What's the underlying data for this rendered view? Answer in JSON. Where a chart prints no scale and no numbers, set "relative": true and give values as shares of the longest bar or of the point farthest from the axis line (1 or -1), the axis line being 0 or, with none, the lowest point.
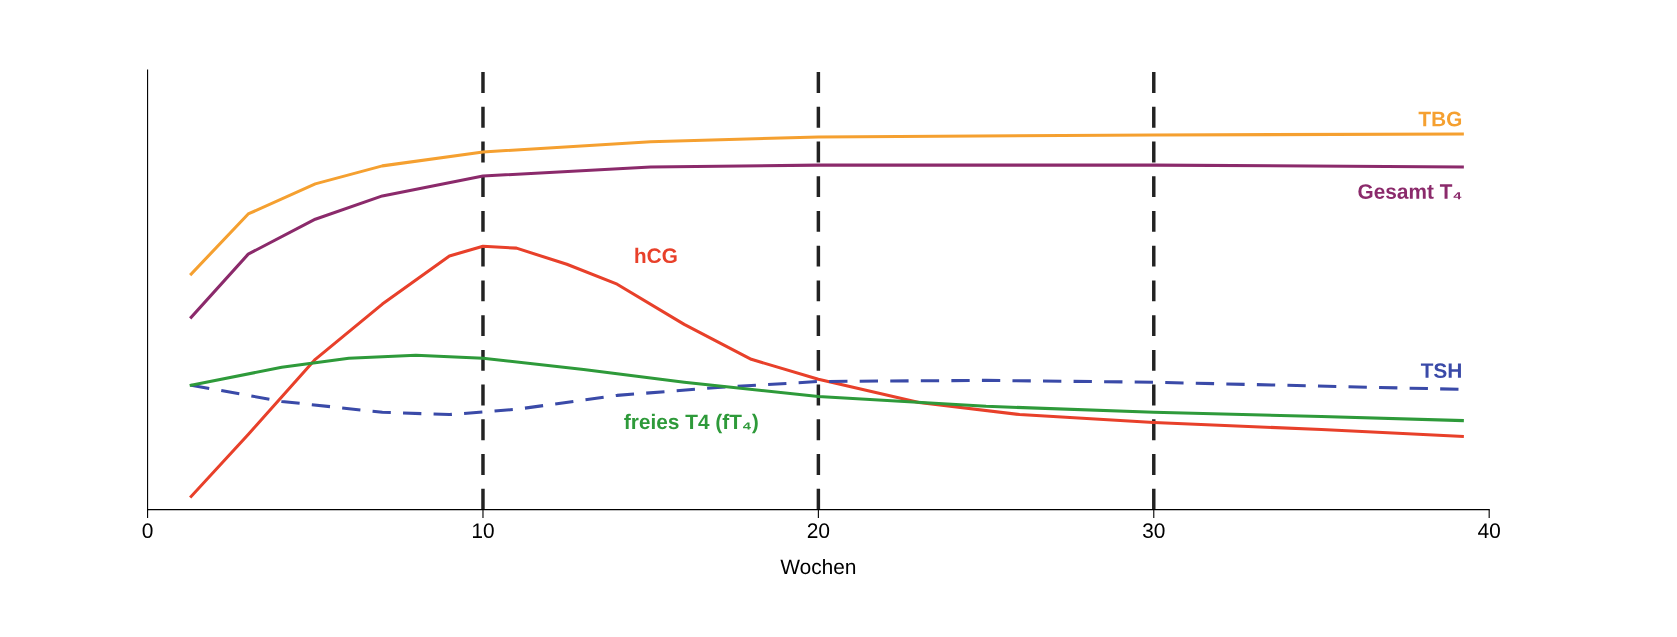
{
  "chart_data": {
    "type": "line",
    "relative": true,
    "xlabel": "Wochen",
    "xlim": [
      0,
      40
    ],
    "xticks": [
      0,
      10,
      20,
      30,
      40
    ],
    "grid": false,
    "legend": false,
    "marker": "none",
    "ref_lines": [
      {
        "axis": "x",
        "value": 10,
        "color": "#222222",
        "line_style": "dashed"
      },
      {
        "axis": "x",
        "value": 20,
        "color": "#222222",
        "line_style": "dashed"
      },
      {
        "axis": "x",
        "value": 30,
        "color": "#222222",
        "line_style": "dashed"
      }
    ],
    "series": [
      {
        "name": "TBG",
        "color": "#f5a030",
        "line_style": "solid",
        "x": [
          1.3,
          3,
          5,
          7,
          10,
          15,
          20,
          30,
          39.2
        ],
        "values": [
          0.627,
          0.787,
          0.867,
          0.915,
          0.952,
          0.979,
          0.992,
          0.997,
          1.0
        ]
      },
      {
        "name": "Gesamt T₄",
        "color": "#8b2a6b",
        "line_style": "solid",
        "x": [
          1.3,
          3,
          5,
          7,
          10,
          15,
          20,
          30,
          39.2
        ],
        "values": [
          0.512,
          0.68,
          0.773,
          0.835,
          0.888,
          0.912,
          0.917,
          0.917,
          0.912
        ]
      },
      {
        "name": "hCG",
        "color": "#e8402a",
        "line_style": "solid",
        "x": [
          1.3,
          3,
          5,
          7,
          9,
          10,
          11,
          12.5,
          14,
          16,
          18,
          20,
          23,
          26,
          30,
          35,
          39.2
        ],
        "values": [
          0.035,
          0.2,
          0.4,
          0.547,
          0.675,
          0.701,
          0.696,
          0.653,
          0.6,
          0.493,
          0.4,
          0.347,
          0.285,
          0.253,
          0.232,
          0.213,
          0.195
        ]
      },
      {
        "name": "TSH",
        "color": "#3a4aa8",
        "line_style": "dashed",
        "x": [
          1.3,
          4,
          7,
          9,
          11,
          14,
          17,
          20,
          25,
          30,
          39.2
        ],
        "values": [
          0.331,
          0.288,
          0.259,
          0.253,
          0.267,
          0.304,
          0.325,
          0.341,
          0.344,
          0.339,
          0.32
        ]
      },
      {
        "name": "freies T4 (fT₄)",
        "color": "#2e9a3a",
        "line_style": "solid",
        "x": [
          1.3,
          4,
          6,
          8,
          10,
          13,
          16,
          20,
          25,
          30,
          35,
          39.2
        ],
        "values": [
          0.331,
          0.379,
          0.403,
          0.411,
          0.403,
          0.373,
          0.339,
          0.301,
          0.275,
          0.259,
          0.248,
          0.237
        ]
      }
    ]
  }
}
